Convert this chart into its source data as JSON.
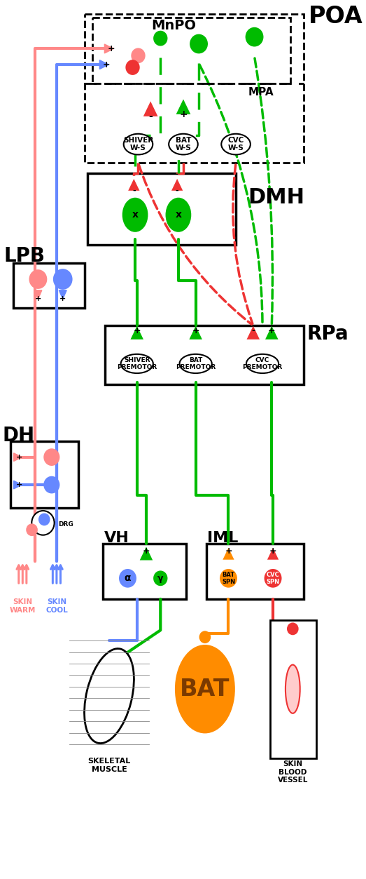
{
  "fig_width": 5.23,
  "fig_height": 12.53,
  "bg_color": "#ffffff",
  "colors": {
    "red": "#EE3333",
    "blue": "#2222EE",
    "green": "#00BB00",
    "orange": "#FF8C00",
    "light_red": "#FF8888",
    "light_blue": "#6688FF",
    "dark_red": "#CC0000",
    "dark_green": "#008800"
  },
  "labels": {
    "POA": "POA",
    "MnPO": "MnPO",
    "MPA": "MPA",
    "DMH": "DMH",
    "LPB": "LPB",
    "RPa": "RPa",
    "DH": "DH",
    "DRG": "DRG",
    "VH": "VH",
    "IML": "IML",
    "SHIVER_WS": "SHIVER\nW-S",
    "BAT_WS": "BAT\nW-S",
    "CVC_WS": "CVC\nW-S",
    "SHIVER_PRE": "SHIVER\nPREMOTOR",
    "BAT_PRE": "BAT\nPREMOTOR",
    "CVC_PRE": "CVC\nPREMOTOR",
    "BAT_SPN": "BAT\nSPN",
    "CVC_SPN": "CVC\nSPN",
    "SKIN_WARM": "SKIN\nWARM",
    "SKIN_COOL": "SKIN\nCOOL",
    "SKELETAL": "SKELETAL\nMUSCLE",
    "BAT": "BAT",
    "SKIN_VESSEL": "SKIN\nBLOOD\nVESSEL",
    "alpha": "α",
    "gamma": "γ"
  }
}
